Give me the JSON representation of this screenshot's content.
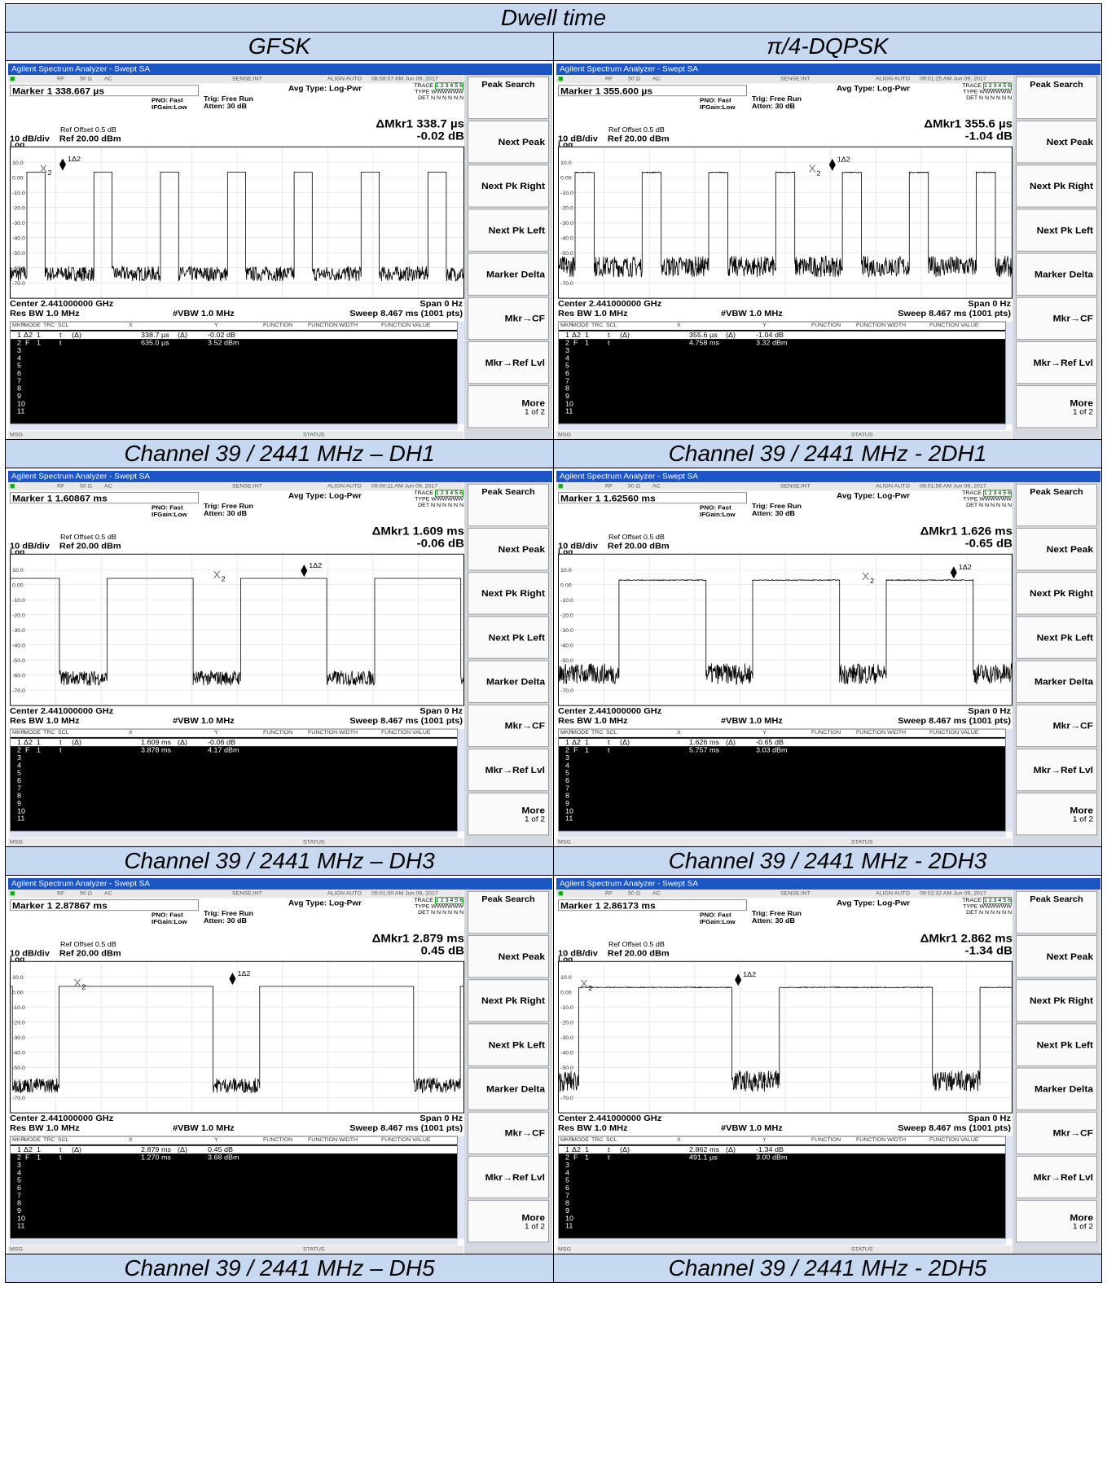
{
  "document": {
    "title": "Dwell time",
    "columns": [
      "GFSK",
      "π/4-DQPSK"
    ],
    "rows": [
      {
        "captions": [
          "Channel 39 / 2441 MHz – DH1",
          "Channel 39 / 2441 MHz - 2DH1"
        ]
      },
      {
        "captions": [
          "Channel 39 / 2441 MHz – DH3",
          "Channel 39 / 2441 MHz - 2DH3"
        ]
      },
      {
        "captions": [
          "Channel 39 / 2441 MHz – DH5",
          "Channel 39 / 2441 MHz - 2DH5"
        ]
      }
    ]
  },
  "common": {
    "window_title": "Agilent Spectrum Analyzer - Swept SA",
    "status_bar": {
      "rf": "RF",
      "impedance": "50 Ω",
      "coupling": "AC",
      "sense": "SENSE:INT",
      "align": "ALIGN AUTO"
    },
    "pno": "PNO: Fast",
    "ifgain": "IFGain:Low",
    "trig": "Trig: Free Run",
    "atten": "Atten: 30 dB",
    "avg_type": "Avg Type: Log-Pwr",
    "trace_label": "TRACE",
    "trace_value": "1 2 3 4 5 6",
    "type_label": "TYPE",
    "type_value": "WWWWWW",
    "det_label": "DET",
    "det_value": "N N N N N N",
    "ref_offset": "Ref Offset 0.5 dB",
    "scale": "10 dB/div",
    "ref_level": "Ref 20.00 dBm",
    "log": "Log",
    "y_ticks": [
      "10.0",
      "0.00",
      "-10.0",
      "-20.0",
      "-30.0",
      "-40.0",
      "-50.0",
      "-60.0",
      "-70.0"
    ],
    "center": "Center 2.441000000 GHz",
    "span": "Span 0 Hz",
    "res_bw": "Res BW 1.0 MHz",
    "vbw": "#VBW 1.0 MHz",
    "sweep": "Sweep  8.467 ms (1001 pts)",
    "table_headers": [
      "MKR",
      "MODE",
      "TRC",
      "SCL",
      "X",
      "Y",
      "FUNCTION",
      "FUNCTION WIDTH",
      "FUNCTION VALUE"
    ],
    "marker_rows_rest": [
      "3",
      "4",
      "5",
      "6",
      "7",
      "8",
      "9",
      "10",
      "11"
    ],
    "msg": "MSG",
    "status": "STATUS",
    "softkeys": [
      "Peak Search",
      "Next Peak",
      "Next Pk Right",
      "Next Pk Left",
      "Marker Delta",
      "Mkr→CF",
      "Mkr→Ref Lvl",
      "More"
    ],
    "more_sub": "1 of 2",
    "delta_marker_label": "1Δ2",
    "ref_marker_label": "2"
  },
  "screens": [
    {
      "timestamp": "08:58:57 AM Jun 09, 2017",
      "marker": "Marker 1 338.667 µs",
      "dmkr_x": "ΔMkr1 338.7 µs",
      "dmkr_y": "-0.02 dB",
      "r1": {
        "num": "1",
        "mode": "Δ2",
        "trc": "1",
        "scl": "t",
        "ref": "(Δ)",
        "x": "338.7 µs",
        "xunit": "(Δ)",
        "y": "-0.02 dB"
      },
      "r2": {
        "num": "2",
        "mode": "F",
        "trc": "1",
        "scl": "t",
        "x": "635.0 µs",
        "y": "3.52 dBm"
      },
      "trace": {
        "period_ms": 1.25,
        "on_ms": 0.3387,
        "first_on_ms": 0.3,
        "noise_level": -66,
        "high_level": 3.5,
        "modulated": false
      },
      "m2_ms": 0.635,
      "m1_ms": 0.974
    },
    {
      "timestamp": "09:01:25 AM Jun 09, 2017",
      "marker": "Marker 1 355.600 µs",
      "dmkr_x": "ΔMkr1 355.6 µs",
      "dmkr_y": "-1.04 dB",
      "r1": {
        "num": "1",
        "mode": "Δ2",
        "trc": "1",
        "scl": "t",
        "ref": "(Δ)",
        "x": "355.6 µs",
        "xunit": "(Δ)",
        "y": "-1.04 dB"
      },
      "r2": {
        "num": "2",
        "mode": "F",
        "trc": "1",
        "scl": "t",
        "x": "4.758 ms",
        "y": "3.32 dBm"
      },
      "trace": {
        "period_ms": 1.25,
        "on_ms": 0.3556,
        "first_on_ms": 0.3,
        "noise_level": -62,
        "high_level": 3.3,
        "modulated": true
      },
      "m2_ms": 4.758,
      "m1_ms": 5.114
    },
    {
      "timestamp": "09:00:11 AM Jun 09, 2017",
      "marker": "Marker 1 1.60867 ms",
      "dmkr_x": "ΔMkr1 1.609 ms",
      "dmkr_y": "-0.06 dB",
      "r1": {
        "num": "1",
        "mode": "Δ2",
        "trc": "1",
        "scl": "t",
        "ref": "(Δ)",
        "x": "1.609 ms",
        "xunit": "(Δ)",
        "y": "-0.06 dB"
      },
      "r2": {
        "num": "2",
        "mode": "F",
        "trc": "1",
        "scl": "t",
        "x": "3.878 ms",
        "y": "4.17 dBm"
      },
      "trace": {
        "period_ms": 2.5,
        "on_ms": 1.609,
        "first_on_ms": -0.7,
        "noise_level": -64,
        "high_level": 4.2,
        "modulated": false
      },
      "m2_ms": 3.878,
      "m1_ms": 5.487
    },
    {
      "timestamp": "09:01:56 AM Jun 09, 2017",
      "marker": "Marker 1 1.62560 ms",
      "dmkr_x": "ΔMkr1 1.626 ms",
      "dmkr_y": "-0.65 dB",
      "r1": {
        "num": "1",
        "mode": "Δ2",
        "trc": "1",
        "scl": "t",
        "ref": "(Δ)",
        "x": "1.626 ms",
        "xunit": "(Δ)",
        "y": "-0.65 dB"
      },
      "r2": {
        "num": "2",
        "mode": "F",
        "trc": "1",
        "scl": "t",
        "x": "5.757 ms",
        "y": "3.03 dBm"
      },
      "trace": {
        "period_ms": 2.5,
        "on_ms": 1.626,
        "first_on_ms": 1.12,
        "noise_level": -62,
        "high_level": 3.0,
        "modulated": true
      },
      "m2_ms": 5.757,
      "m1_ms": 7.383
    },
    {
      "timestamp": "09:01:00 AM Jun 09, 2017",
      "marker": "Marker 1 2.87867 ms",
      "dmkr_x": "ΔMkr1 2.879 ms",
      "dmkr_y": "0.45 dB",
      "r1": {
        "num": "1",
        "mode": "Δ2",
        "trc": "1",
        "scl": "t",
        "ref": "(Δ)",
        "x": "2.879 ms",
        "xunit": "(Δ)",
        "y": "0.45 dB"
      },
      "r2": {
        "num": "2",
        "mode": "F",
        "trc": "1",
        "scl": "t",
        "x": "1.270 ms",
        "y": "3.68 dBm"
      },
      "trace": {
        "period_ms": 3.75,
        "on_ms": 2.879,
        "first_on_ms": -2.85,
        "noise_level": -64,
        "high_level": 3.7,
        "modulated": false
      },
      "m2_ms": 1.27,
      "m1_ms": 4.149
    },
    {
      "timestamp": "09:02:32 AM Jun 09, 2017",
      "marker": "Marker 1 2.86173 ms",
      "dmkr_x": "ΔMkr1 2.862 ms",
      "dmkr_y": "-1.34 dB",
      "r1": {
        "num": "1",
        "mode": "Δ2",
        "trc": "1",
        "scl": "t",
        "ref": "(Δ)",
        "x": "2.862 ms",
        "xunit": "(Δ)",
        "y": "-1.34 dB"
      },
      "r2": {
        "num": "2",
        "mode": "F",
        "trc": "1",
        "scl": "t",
        "x": "491.1 µs",
        "y": "3.00 dBm"
      },
      "trace": {
        "period_ms": 3.75,
        "on_ms": 2.862,
        "first_on_ms": 0.37,
        "noise_level": -62,
        "high_level": 3.0,
        "modulated": true
      },
      "m2_ms": 0.491,
      "m1_ms": 3.353
    }
  ]
}
